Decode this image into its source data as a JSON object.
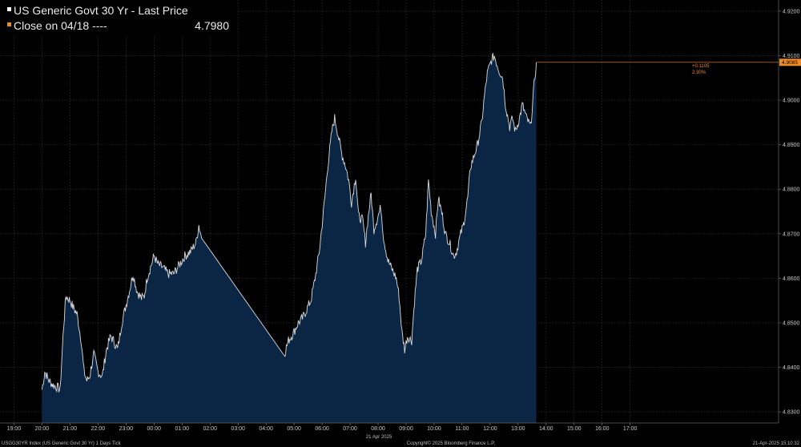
{
  "legend": {
    "series_label": "US Generic Govt 30 Yr - Last Price",
    "close_label": "Close on 04/18 ----",
    "close_value": "4.7980",
    "series_color": "#ffffff",
    "close_color": "#f08a24"
  },
  "last_price_tag": "4.9085",
  "change_badge": {
    "change": "+0.1105",
    "pct": "2.30%"
  },
  "footer": {
    "left": "USGG30YR Index (US Generic Govt 30 Yr) 1 Days  Tick",
    "center": "Copyright© 2025 Bloomberg Finance L.P.",
    "right": "21-Apr-2025 15:10:32"
  },
  "colors": {
    "background": "#000000",
    "area_fill": "#0b2545",
    "line": "#dcdcdc",
    "grid": "#3c3c3c",
    "close_line": "#f08a24"
  },
  "chart_data": {
    "type": "area",
    "title": "US Generic Govt 30 Yr - Last Price",
    "xlabel": "21 Apr 2025",
    "ylabel": "",
    "x_tick_labels": [
      "19:00",
      "20:00",
      "21:00",
      "22:00",
      "23:00",
      "00:00",
      "01:00",
      "02:00",
      "03:00",
      "04:00",
      "05:00",
      "06:00",
      "07:00",
      "08:00",
      "09:00",
      "10:00",
      "11:00",
      "12:00",
      "13:00",
      "14:00",
      "15:00",
      "16:00",
      "17:00"
    ],
    "y_tick_labels": [
      "4.8300",
      "4.8400",
      "4.8500",
      "4.8600",
      "4.8700",
      "4.8800",
      "4.8900",
      "4.9000",
      "4.9100",
      "4.9200"
    ],
    "ylim": [
      4.8275,
      4.9225
    ],
    "xlim_hours": [
      -5.5,
      22.3
    ],
    "grid": true,
    "legend_position": "top-left",
    "close_reference": 4.798,
    "last_value": 4.9085,
    "series": [
      {
        "name": "US Generic Govt 30 Yr - Last Price",
        "points": [
          [
            -4.0,
            4.835
          ],
          [
            -3.9,
            4.839
          ],
          [
            -3.75,
            4.837
          ],
          [
            -3.6,
            4.836
          ],
          [
            -3.45,
            4.8355
          ],
          [
            -3.35,
            4.835
          ],
          [
            -3.25,
            4.847
          ],
          [
            -3.15,
            4.856
          ],
          [
            -3.0,
            4.855
          ],
          [
            -2.85,
            4.853
          ],
          [
            -2.75,
            4.852
          ],
          [
            -2.6,
            4.846
          ],
          [
            -2.5,
            4.839
          ],
          [
            -2.4,
            4.837
          ],
          [
            -2.3,
            4.838
          ],
          [
            -2.15,
            4.843
          ],
          [
            -2.0,
            4.839
          ],
          [
            -1.85,
            4.838
          ],
          [
            -1.7,
            4.844
          ],
          [
            -1.55,
            4.847
          ],
          [
            -1.45,
            4.846
          ],
          [
            -1.3,
            4.844
          ],
          [
            -1.15,
            4.85
          ],
          [
            -1.0,
            4.854
          ],
          [
            -0.85,
            4.858
          ],
          [
            -0.75,
            4.861
          ],
          [
            -0.6,
            4.857
          ],
          [
            -0.45,
            4.8555
          ],
          [
            -0.35,
            4.856
          ],
          [
            -0.25,
            4.86
          ],
          [
            -0.1,
            4.863
          ],
          [
            0.0,
            4.865
          ],
          [
            0.15,
            4.863
          ],
          [
            0.3,
            4.8625
          ],
          [
            0.5,
            4.861
          ],
          [
            0.7,
            4.861
          ],
          [
            0.9,
            4.863
          ],
          [
            1.1,
            4.865
          ],
          [
            1.3,
            4.866
          ],
          [
            1.5,
            4.868
          ],
          [
            1.6,
            4.872
          ],
          [
            1.7,
            4.869
          ],
          [
            4.65,
            4.843
          ],
          [
            4.8,
            4.846
          ],
          [
            5.0,
            4.848
          ],
          [
            5.15,
            4.85
          ],
          [
            5.3,
            4.851
          ],
          [
            5.45,
            4.853
          ],
          [
            5.6,
            4.855
          ],
          [
            5.75,
            4.86
          ],
          [
            5.9,
            4.866
          ],
          [
            6.05,
            4.875
          ],
          [
            6.2,
            4.885
          ],
          [
            6.35,
            4.893
          ],
          [
            6.45,
            4.896
          ],
          [
            6.55,
            4.893
          ],
          [
            6.7,
            4.888
          ],
          [
            6.85,
            4.885
          ],
          [
            6.95,
            4.882
          ],
          [
            7.05,
            4.877
          ],
          [
            7.2,
            4.883
          ],
          [
            7.3,
            4.874
          ],
          [
            7.45,
            4.873
          ],
          [
            7.55,
            4.868
          ],
          [
            7.65,
            4.874
          ],
          [
            7.75,
            4.879
          ],
          [
            7.85,
            4.871
          ],
          [
            7.95,
            4.873
          ],
          [
            8.1,
            4.876
          ],
          [
            8.2,
            4.869
          ],
          [
            8.35,
            4.864
          ],
          [
            8.5,
            4.862
          ],
          [
            8.65,
            4.86
          ],
          [
            8.75,
            4.856
          ],
          [
            8.85,
            4.848
          ],
          [
            8.95,
            4.844
          ],
          [
            9.05,
            4.847
          ],
          [
            9.2,
            4.846
          ],
          [
            9.3,
            4.855
          ],
          [
            9.4,
            4.862
          ],
          [
            9.55,
            4.864
          ],
          [
            9.7,
            4.87
          ],
          [
            9.8,
            4.882
          ],
          [
            9.9,
            4.875
          ],
          [
            10.05,
            4.87
          ],
          [
            10.15,
            4.878
          ],
          [
            10.3,
            4.874
          ],
          [
            10.4,
            4.87
          ],
          [
            10.55,
            4.868
          ],
          [
            10.7,
            4.865
          ],
          [
            10.8,
            4.866
          ],
          [
            10.95,
            4.87
          ],
          [
            11.05,
            4.872
          ],
          [
            11.2,
            4.878
          ],
          [
            11.3,
            4.885
          ],
          [
            11.45,
            4.888
          ],
          [
            11.55,
            4.89
          ],
          [
            11.7,
            4.895
          ],
          [
            11.8,
            4.901
          ],
          [
            11.9,
            4.906
          ],
          [
            12.05,
            4.909
          ],
          [
            12.15,
            4.91
          ],
          [
            12.3,
            4.907
          ],
          [
            12.45,
            4.905
          ],
          [
            12.55,
            4.899
          ],
          [
            12.7,
            4.894
          ],
          [
            12.8,
            4.896
          ],
          [
            12.9,
            4.893
          ],
          [
            13.05,
            4.896
          ],
          [
            13.15,
            4.899
          ],
          [
            13.3,
            4.896
          ],
          [
            13.45,
            4.894
          ],
          [
            13.55,
            4.902
          ],
          [
            13.65,
            4.9085
          ]
        ]
      }
    ]
  }
}
